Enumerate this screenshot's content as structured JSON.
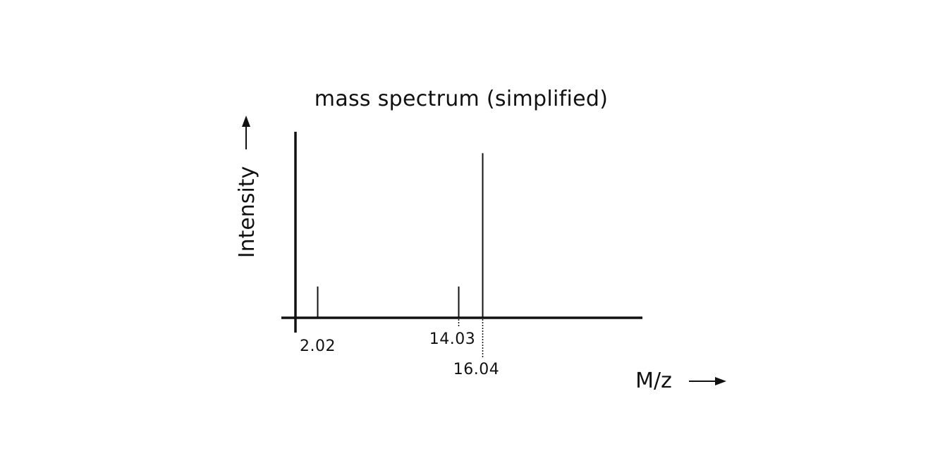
{
  "chart_data": {
    "type": "bar",
    "title": "mass spectrum (simplified)",
    "xlabel": "M/z",
    "ylabel": "Intensity",
    "peaks": [
      {
        "x": 2.02,
        "label": "2.02",
        "intensity": 0.19
      },
      {
        "x": 14.03,
        "label": "14.03",
        "intensity": 0.19
      },
      {
        "x": 16.04,
        "label": "16.04",
        "intensity": 1.0
      }
    ],
    "xlim": [
      -1.05,
      29.7
    ],
    "ylim": [
      0,
      1.13
    ],
    "grid": false,
    "legend": "none"
  },
  "colors": {
    "ink": "#111111",
    "background": "#ffffff"
  }
}
